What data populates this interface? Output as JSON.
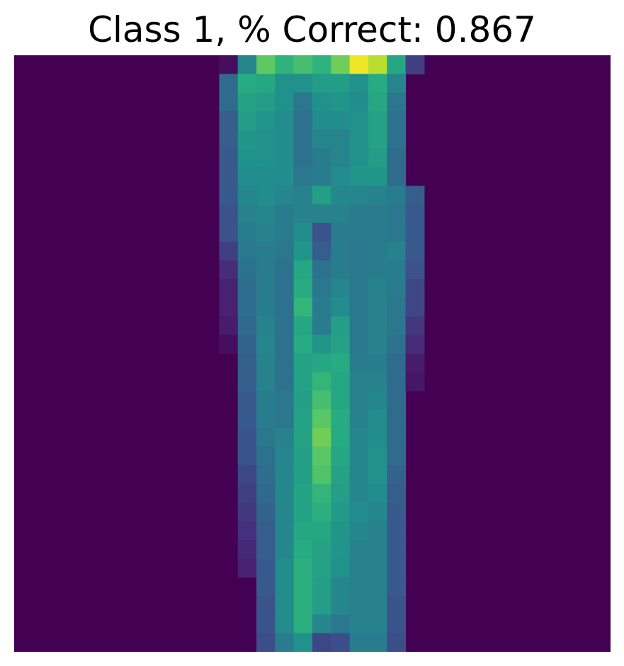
{
  "chart_data": {
    "type": "heatmap",
    "title": "Class 1, % Correct: 0.867",
    "colormap": "viridis",
    "vmin": 0.0,
    "vmax": 1.0,
    "axes_visible": false,
    "grid": false,
    "legend": "none",
    "col_start": 0,
    "col_count": 32,
    "row_count": 32,
    "band_start_col": 11,
    "band_rows": [
      [
        0.05,
        0.45,
        0.75,
        0.65,
        0.7,
        0.65,
        0.78,
        0.98,
        0.9,
        0.6,
        0.2
      ],
      [
        0.35,
        0.62,
        0.6,
        0.5,
        0.5,
        0.55,
        0.55,
        0.5,
        0.62,
        0.45
      ],
      [
        0.35,
        0.58,
        0.55,
        0.5,
        0.4,
        0.5,
        0.52,
        0.48,
        0.6,
        0.4
      ],
      [
        0.3,
        0.55,
        0.52,
        0.48,
        0.38,
        0.48,
        0.48,
        0.5,
        0.58,
        0.38
      ],
      [
        0.3,
        0.52,
        0.5,
        0.48,
        0.38,
        0.45,
        0.45,
        0.5,
        0.58,
        0.38
      ],
      [
        0.28,
        0.5,
        0.5,
        0.48,
        0.38,
        0.42,
        0.45,
        0.5,
        0.55,
        0.35
      ],
      [
        0.28,
        0.48,
        0.48,
        0.48,
        0.4,
        0.42,
        0.48,
        0.52,
        0.52,
        0.35
      ],
      [
        0.28,
        0.46,
        0.48,
        0.46,
        0.44,
        0.56,
        0.46,
        0.46,
        0.44,
        0.42,
        0.3
      ],
      [
        0.25,
        0.44,
        0.46,
        0.42,
        0.44,
        0.44,
        0.44,
        0.42,
        0.42,
        0.4,
        0.28
      ],
      [
        0.25,
        0.42,
        0.44,
        0.42,
        0.48,
        0.25,
        0.42,
        0.42,
        0.42,
        0.4,
        0.28
      ],
      [
        0.2,
        0.4,
        0.42,
        0.4,
        0.52,
        0.3,
        0.42,
        0.4,
        0.42,
        0.44,
        0.28
      ],
      [
        0.15,
        0.38,
        0.42,
        0.38,
        0.6,
        0.38,
        0.42,
        0.4,
        0.42,
        0.42,
        0.25
      ],
      [
        0.12,
        0.36,
        0.42,
        0.38,
        0.62,
        0.4,
        0.46,
        0.4,
        0.44,
        0.42,
        0.22
      ],
      [
        0.12,
        0.36,
        0.42,
        0.38,
        0.66,
        0.42,
        0.48,
        0.4,
        0.44,
        0.4,
        0.22
      ],
      [
        0.1,
        0.34,
        0.44,
        0.38,
        0.6,
        0.42,
        0.56,
        0.4,
        0.44,
        0.4,
        0.18
      ],
      [
        0.05,
        0.32,
        0.46,
        0.38,
        0.62,
        0.52,
        0.58,
        0.4,
        0.44,
        0.38,
        0.15
      ],
      [
        0.3,
        0.44,
        0.38,
        0.58,
        0.6,
        0.62,
        0.42,
        0.42,
        0.35,
        0.1
      ],
      [
        0.3,
        0.44,
        0.38,
        0.58,
        0.66,
        0.6,
        0.44,
        0.44,
        0.35,
        0.08
      ],
      [
        0.28,
        0.42,
        0.4,
        0.56,
        0.7,
        0.6,
        0.44,
        0.46,
        0.35
      ],
      [
        0.28,
        0.42,
        0.4,
        0.58,
        0.74,
        0.62,
        0.44,
        0.48,
        0.35
      ],
      [
        0.26,
        0.4,
        0.44,
        0.58,
        0.78,
        0.62,
        0.46,
        0.48,
        0.35
      ],
      [
        0.26,
        0.38,
        0.46,
        0.56,
        0.74,
        0.6,
        0.46,
        0.5,
        0.35
      ],
      [
        0.22,
        0.36,
        0.46,
        0.56,
        0.72,
        0.58,
        0.46,
        0.5,
        0.32
      ],
      [
        0.2,
        0.34,
        0.46,
        0.58,
        0.66,
        0.56,
        0.46,
        0.48,
        0.3
      ],
      [
        0.18,
        0.32,
        0.46,
        0.58,
        0.64,
        0.54,
        0.48,
        0.46,
        0.28
      ],
      [
        0.16,
        0.3,
        0.46,
        0.6,
        0.6,
        0.52,
        0.46,
        0.44,
        0.28
      ],
      [
        0.14,
        0.3,
        0.46,
        0.62,
        0.58,
        0.52,
        0.44,
        0.44,
        0.28
      ],
      [
        0.12,
        0.28,
        0.48,
        0.64,
        0.58,
        0.5,
        0.44,
        0.44,
        0.28
      ],
      [
        0.28,
        0.48,
        0.64,
        0.56,
        0.46,
        0.44,
        0.44,
        0.28
      ],
      [
        0.26,
        0.48,
        0.64,
        0.56,
        0.46,
        0.44,
        0.44,
        0.26
      ],
      [
        0.26,
        0.48,
        0.64,
        0.46,
        0.4,
        0.44,
        0.44,
        0.26
      ],
      [
        0.24,
        0.42,
        0.5,
        0.22,
        0.24,
        0.42,
        0.42,
        0.24
      ]
    ],
    "band_row_starts": [
      11,
      11,
      11,
      11,
      11,
      11,
      11,
      11,
      11,
      11,
      11,
      11,
      11,
      11,
      11,
      11,
      12,
      12,
      12,
      12,
      12,
      12,
      12,
      12,
      12,
      12,
      12,
      12,
      13,
      13,
      13,
      13
    ]
  }
}
